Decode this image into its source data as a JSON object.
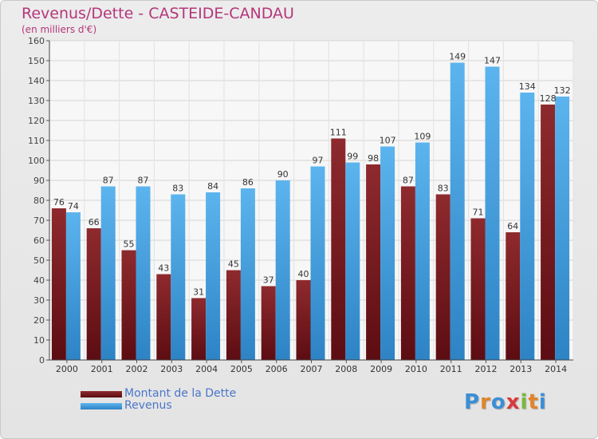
{
  "header": {
    "title": "Revenus/Dette - CASTEIDE-CANDAU",
    "subtitle": "(en milliers d'€)"
  },
  "legend": {
    "items": [
      {
        "label": "Montant de la Dette",
        "color": "#7a1a1e"
      },
      {
        "label": "Revenus",
        "color": "#3d9ee0"
      }
    ]
  },
  "logo": {
    "text": "Proxiti",
    "letters": [
      {
        "char": "P",
        "color": "#3a8fd6"
      },
      {
        "char": "r",
        "color": "#e0842a"
      },
      {
        "char": "o",
        "color": "#3a8fd6"
      },
      {
        "char": "x",
        "color": "#d93a3a"
      },
      {
        "char": "i",
        "color": "#7ab83a"
      },
      {
        "char": "t",
        "color": "#e0842a"
      },
      {
        "char": "i",
        "color": "#3a8fd6"
      }
    ]
  },
  "chart_data": {
    "type": "bar",
    "title": "Revenus/Dette - CASTEIDE-CANDAU",
    "subtitle": "(en milliers d'€)",
    "categories": [
      "2000",
      "2001",
      "2002",
      "2003",
      "2004",
      "2005",
      "2006",
      "2007",
      "2008",
      "2009",
      "2010",
      "2011",
      "2012",
      "2013",
      "2014"
    ],
    "series": [
      {
        "name": "Montant de la Dette",
        "color": "#7a1a1e",
        "values": [
          76,
          66,
          55,
          43,
          31,
          45,
          37,
          40,
          111,
          98,
          87,
          83,
          71,
          64,
          128
        ]
      },
      {
        "name": "Revenus",
        "color": "#3d9ee0",
        "values": [
          74,
          87,
          87,
          83,
          84,
          86,
          90,
          97,
          99,
          107,
          109,
          149,
          147,
          134,
          132
        ]
      }
    ],
    "ylim": [
      0,
      160
    ],
    "yticks": [
      0,
      10,
      20,
      30,
      40,
      50,
      60,
      70,
      80,
      90,
      100,
      110,
      120,
      130,
      140,
      150,
      160
    ],
    "grid": true,
    "legend_position": "bottom-left"
  }
}
